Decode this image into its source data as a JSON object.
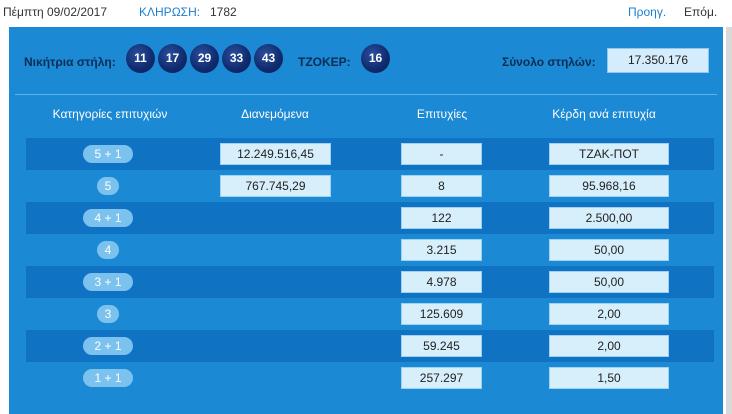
{
  "header": {
    "date": "Πέμπτη 09/02/2017",
    "draw_label": "ΚΛΗΡΩΣΗ:",
    "draw_number": "1782",
    "prev": "Προηγ.",
    "next": "Επόμ."
  },
  "draw": {
    "winning_label": "Νικήτρια στήλη:",
    "numbers": [
      "11",
      "17",
      "29",
      "33",
      "43"
    ],
    "joker_label": "ΤΖΟΚΕΡ:",
    "joker": "16",
    "total_label": "Σύνολο στηλών:",
    "total": "17.350.176"
  },
  "table": {
    "columns": [
      "Κατηγορίες επιτυχιών",
      "Διανεμόμενα",
      "Επιτυχίες",
      "Κέρδη ανά επιτυχία"
    ],
    "rows": [
      {
        "category": "5 + 1",
        "distributed": "12.249.516,45",
        "winners": "-",
        "prize": "ΤΖΑΚ-ΠΟΤ"
      },
      {
        "category": "5",
        "distributed": "767.745,29",
        "winners": "8",
        "prize": "95.968,16"
      },
      {
        "category": "4 + 1",
        "distributed": "",
        "winners": "122",
        "prize": "2.500,00"
      },
      {
        "category": "4",
        "distributed": "",
        "winners": "3.215",
        "prize": "50,00"
      },
      {
        "category": "3 + 1",
        "distributed": "",
        "winners": "4.978",
        "prize": "50,00"
      },
      {
        "category": "3",
        "distributed": "",
        "winners": "125.609",
        "prize": "2,00"
      },
      {
        "category": "2 + 1",
        "distributed": "",
        "winners": "59.245",
        "prize": "2,00"
      },
      {
        "category": "1 + 1",
        "distributed": "",
        "winners": "257.297",
        "prize": "1,50"
      }
    ]
  }
}
